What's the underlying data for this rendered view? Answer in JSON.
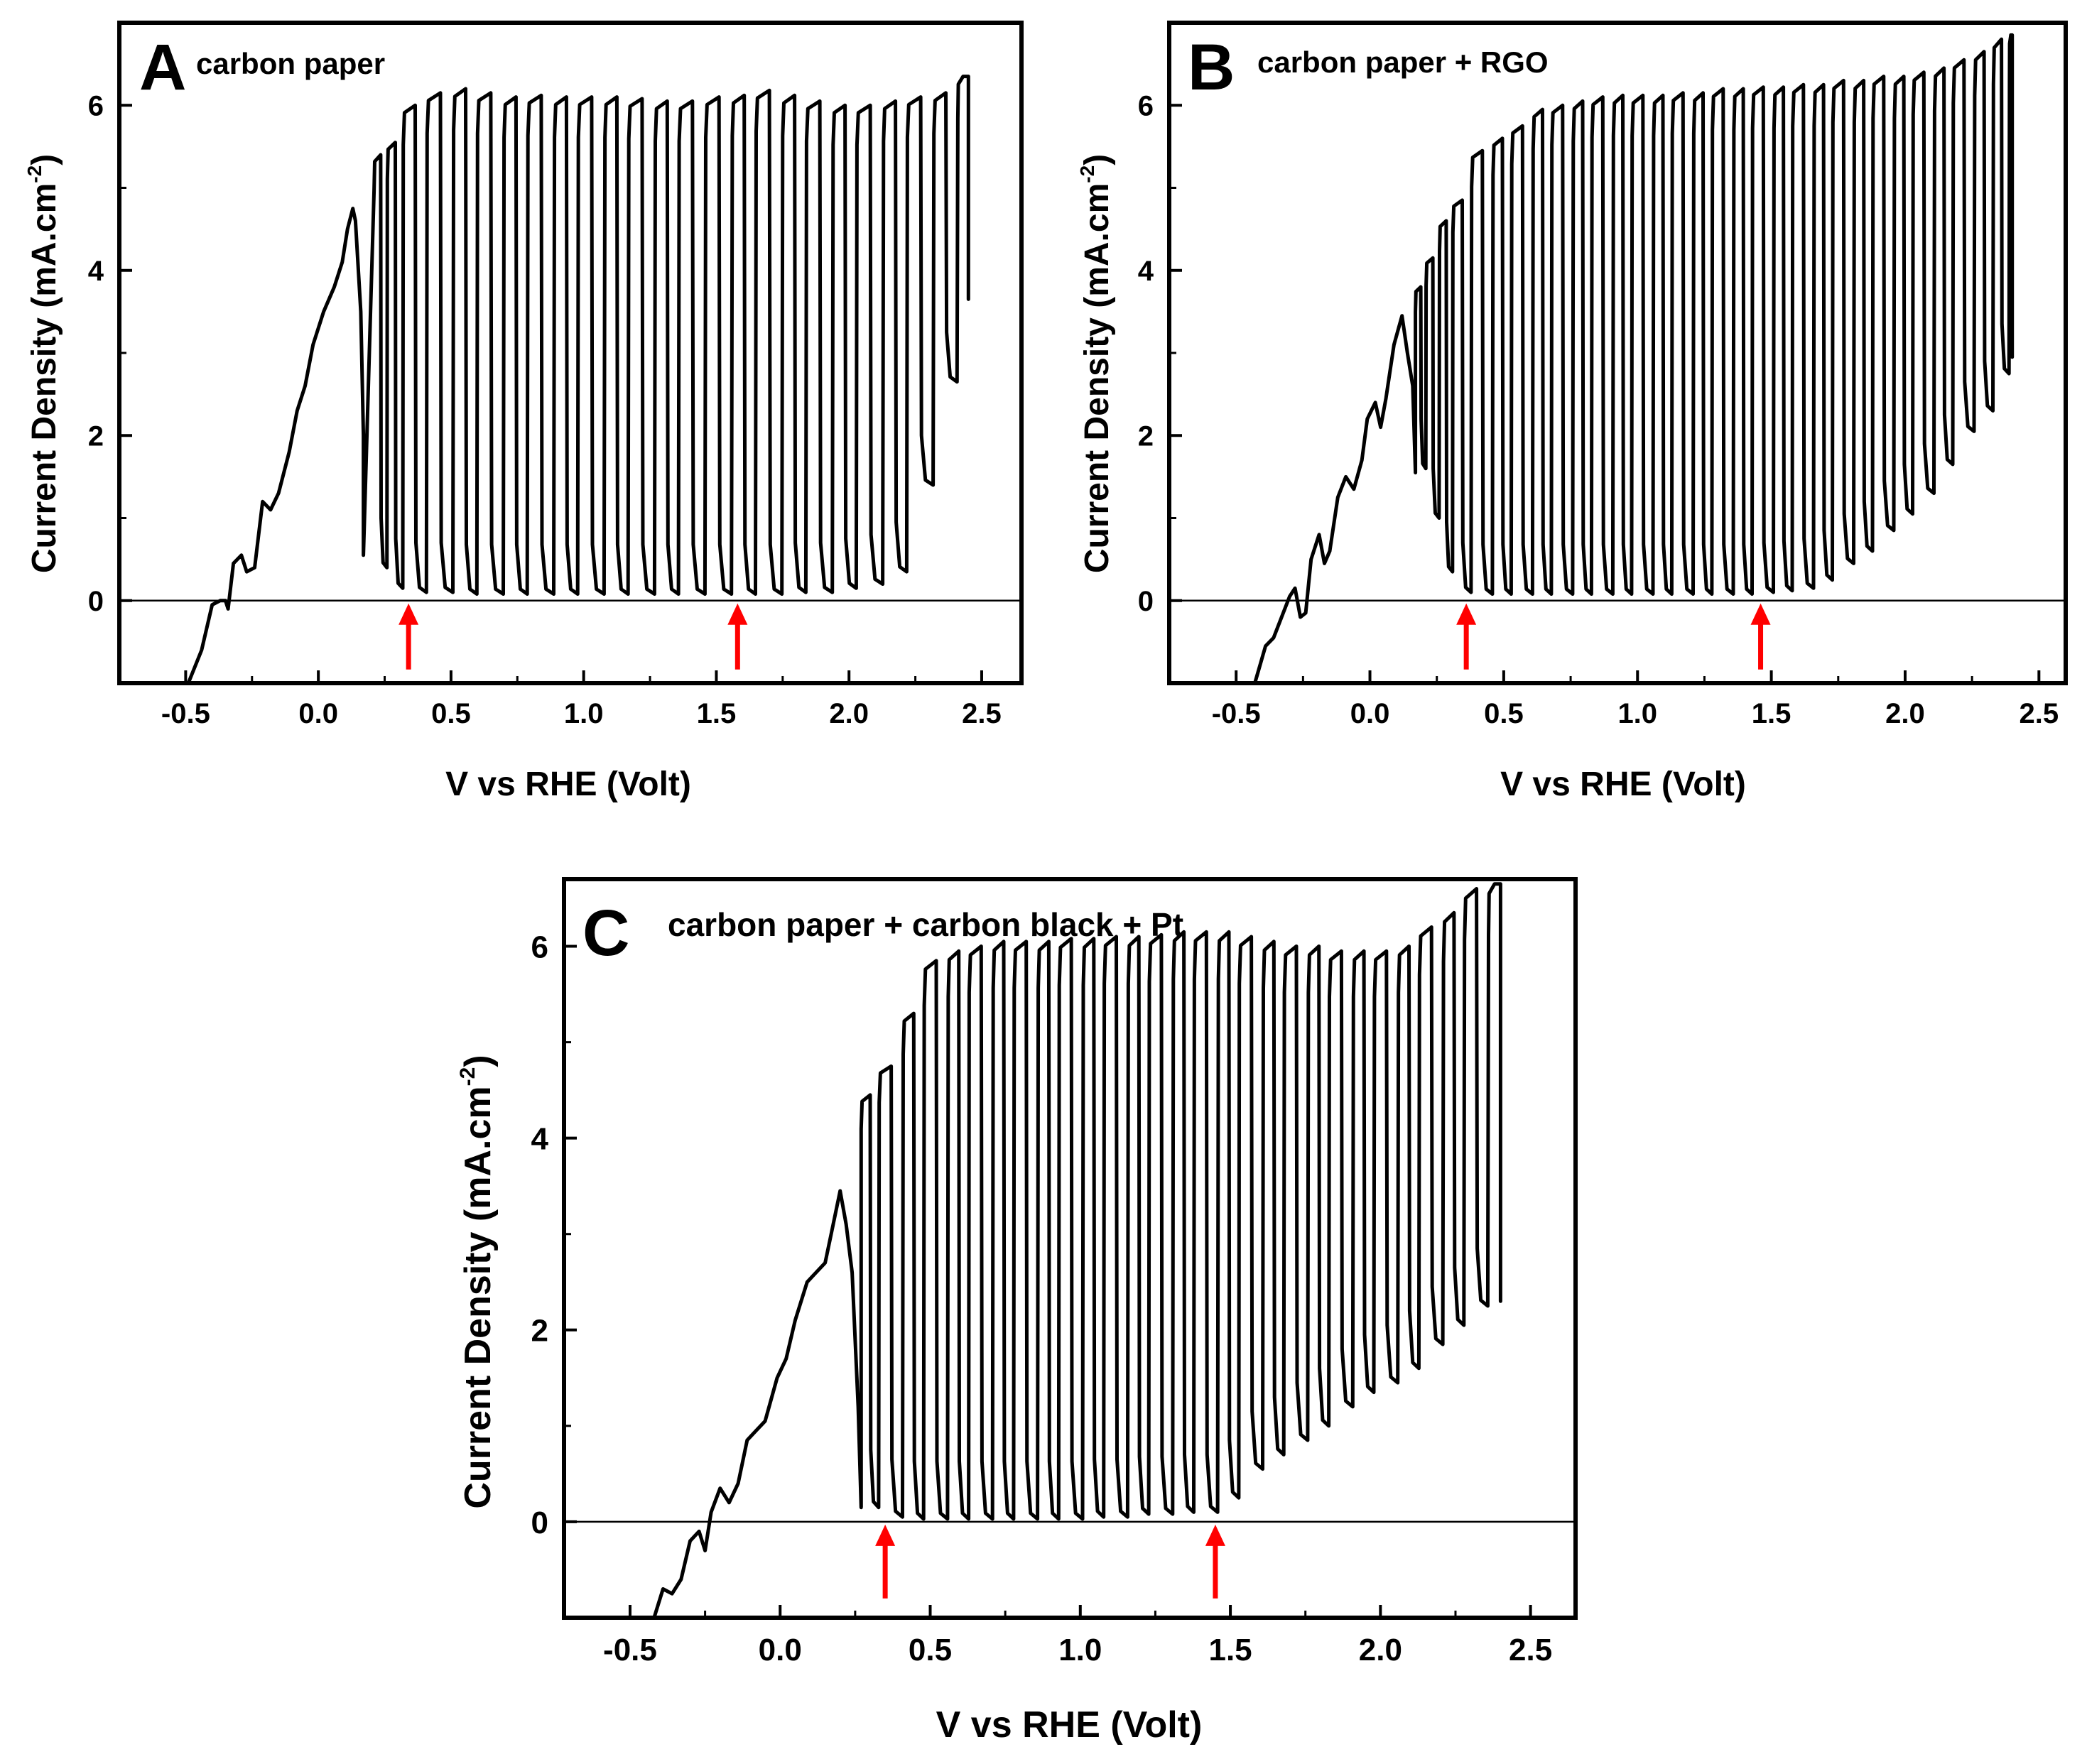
{
  "figure": {
    "panels": [
      {
        "letter": "A",
        "title": "carbon paper"
      },
      {
        "letter": "B",
        "title": "carbon paper + RGO"
      },
      {
        "letter": "C",
        "title": "carbon paper + carbon black + Pt"
      }
    ],
    "xlabel": "V vs RHE (Volt)",
    "ylabel": "Current Density (mA.cm",
    "ylabel_sup": "-2",
    "ylabel_close": ")",
    "xticks": [
      "-0.5",
      "0.0",
      "0.5",
      "1.0",
      "1.5",
      "2.0",
      "2.5"
    ],
    "yticks": [
      "0",
      "2",
      "4",
      "6"
    ]
  },
  "colors": {
    "trace": "#000000",
    "arrow": "#ff0000",
    "axis": "#000000"
  },
  "chart_data": [
    {
      "type": "line",
      "panel": "A",
      "title": "carbon paper",
      "xlabel": "V vs RHE (Volt)",
      "ylabel": "Current Density (mA.cm-2)",
      "xlim": [
        -0.75,
        2.65
      ],
      "ylim": [
        -1,
        7
      ],
      "xticks": [
        -0.5,
        0.0,
        0.5,
        1.0,
        1.5,
        2.0,
        2.5
      ],
      "yticks": [
        0,
        2,
        4,
        6
      ],
      "zero_line": true,
      "arrows_at_x": [
        0.34,
        1.58
      ],
      "ramp_points": [
        [
          -0.49,
          -1.0
        ],
        [
          -0.44,
          -0.6
        ],
        [
          -0.4,
          -0.05
        ],
        [
          -0.37,
          0.0
        ],
        [
          -0.35,
          0.0
        ],
        [
          -0.34,
          -0.1
        ],
        [
          -0.32,
          0.45
        ],
        [
          -0.29,
          0.55
        ],
        [
          -0.27,
          0.35
        ],
        [
          -0.24,
          0.4
        ],
        [
          -0.21,
          1.2
        ],
        [
          -0.18,
          1.1
        ],
        [
          -0.15,
          1.3
        ],
        [
          -0.11,
          1.8
        ],
        [
          -0.08,
          2.3
        ],
        [
          -0.05,
          2.6
        ],
        [
          -0.02,
          3.1
        ],
        [
          0.02,
          3.5
        ],
        [
          0.06,
          3.8
        ],
        [
          0.09,
          4.1
        ],
        [
          0.11,
          4.5
        ],
        [
          0.13,
          4.75
        ],
        [
          0.14,
          4.6
        ],
        [
          0.16,
          3.5
        ],
        [
          0.17,
          2.0
        ],
        [
          0.17,
          0.55
        ]
      ],
      "pulses": [
        {
          "x": 0.21,
          "on": 5.4,
          "off": 0.4
        },
        {
          "x": 0.26,
          "on": 5.55,
          "off": 0.15
        },
        {
          "x": 0.32,
          "on": 6.0,
          "off": 0.1
        },
        {
          "x": 0.41,
          "on": 6.15,
          "off": 0.1
        },
        {
          "x": 0.51,
          "on": 6.2,
          "off": 0.08
        },
        {
          "x": 0.6,
          "on": 6.15,
          "off": 0.08
        },
        {
          "x": 0.7,
          "on": 6.1,
          "off": 0.08
        },
        {
          "x": 0.79,
          "on": 6.12,
          "off": 0.08
        },
        {
          "x": 0.89,
          "on": 6.1,
          "off": 0.08
        },
        {
          "x": 0.98,
          "on": 6.1,
          "off": 0.08
        },
        {
          "x": 1.08,
          "on": 6.1,
          "off": 0.08
        },
        {
          "x": 1.17,
          "on": 6.08,
          "off": 0.08
        },
        {
          "x": 1.27,
          "on": 6.05,
          "off": 0.08
        },
        {
          "x": 1.36,
          "on": 6.05,
          "off": 0.08
        },
        {
          "x": 1.46,
          "on": 6.1,
          "off": 0.08
        },
        {
          "x": 1.56,
          "on": 6.12,
          "off": 0.08
        },
        {
          "x": 1.65,
          "on": 6.18,
          "off": 0.08
        },
        {
          "x": 1.75,
          "on": 6.12,
          "off": 0.1
        },
        {
          "x": 1.84,
          "on": 6.05,
          "off": 0.1
        },
        {
          "x": 1.94,
          "on": 6.0,
          "off": 0.15
        },
        {
          "x": 2.03,
          "on": 6.0,
          "off": 0.2
        },
        {
          "x": 2.13,
          "on": 6.05,
          "off": 0.35
        },
        {
          "x": 2.22,
          "on": 6.1,
          "off": 1.4
        },
        {
          "x": 2.32,
          "on": 6.15,
          "off": 2.65
        },
        {
          "x": 2.41,
          "on": 6.35,
          "off": null
        }
      ],
      "end": {
        "x": 2.45,
        "y": 3.65
      }
    },
    {
      "type": "line",
      "panel": "B",
      "title": "carbon paper + RGO",
      "xlabel": "V vs RHE (Volt)",
      "ylabel": "Current Density (mA.cm-2)",
      "xlim": [
        -0.75,
        2.6
      ],
      "ylim": [
        -1,
        7
      ],
      "xticks": [
        -0.5,
        0.0,
        0.5,
        1.0,
        1.5,
        2.0,
        2.5
      ],
      "yticks": [
        0,
        2,
        4,
        6
      ],
      "zero_line": true,
      "arrows_at_x": [
        0.36,
        1.46
      ],
      "ramp_points": [
        [
          -0.43,
          -1.0
        ],
        [
          -0.39,
          -0.55
        ],
        [
          -0.36,
          -0.45
        ],
        [
          -0.33,
          -0.2
        ],
        [
          -0.3,
          0.05
        ],
        [
          -0.28,
          0.15
        ],
        [
          -0.26,
          -0.2
        ],
        [
          -0.24,
          -0.15
        ],
        [
          -0.22,
          0.5
        ],
        [
          -0.19,
          0.8
        ],
        [
          -0.17,
          0.45
        ],
        [
          -0.15,
          0.6
        ],
        [
          -0.12,
          1.25
        ],
        [
          -0.09,
          1.5
        ],
        [
          -0.06,
          1.35
        ],
        [
          -0.03,
          1.7
        ],
        [
          -0.01,
          2.2
        ],
        [
          0.02,
          2.4
        ],
        [
          0.04,
          2.1
        ],
        [
          0.06,
          2.45
        ],
        [
          0.09,
          3.1
        ],
        [
          0.12,
          3.45
        ],
        [
          0.14,
          3.0
        ],
        [
          0.16,
          2.6
        ],
        [
          0.17,
          1.55
        ]
      ],
      "pulses": [
        {
          "x": 0.17,
          "on": 3.8,
          "off": 1.6
        },
        {
          "x": 0.21,
          "on": 4.15,
          "off": 1.0
        },
        {
          "x": 0.26,
          "on": 4.6,
          "off": 0.35
        },
        {
          "x": 0.31,
          "on": 4.85,
          "off": 0.1
        },
        {
          "x": 0.38,
          "on": 5.45,
          "off": 0.08
        },
        {
          "x": 0.46,
          "on": 5.6,
          "off": 0.08
        },
        {
          "x": 0.53,
          "on": 5.75,
          "off": 0.08
        },
        {
          "x": 0.61,
          "on": 5.95,
          "off": 0.08
        },
        {
          "x": 0.68,
          "on": 6.0,
          "off": 0.08
        },
        {
          "x": 0.76,
          "on": 6.05,
          "off": 0.08
        },
        {
          "x": 0.83,
          "on": 6.1,
          "off": 0.08
        },
        {
          "x": 0.91,
          "on": 6.12,
          "off": 0.08
        },
        {
          "x": 0.98,
          "on": 6.12,
          "off": 0.08
        },
        {
          "x": 1.06,
          "on": 6.12,
          "off": 0.08
        },
        {
          "x": 1.13,
          "on": 6.15,
          "off": 0.08
        },
        {
          "x": 1.21,
          "on": 6.15,
          "off": 0.08
        },
        {
          "x": 1.28,
          "on": 6.2,
          "off": 0.08
        },
        {
          "x": 1.36,
          "on": 6.2,
          "off": 0.08
        },
        {
          "x": 1.43,
          "on": 6.22,
          "off": 0.1
        },
        {
          "x": 1.51,
          "on": 6.22,
          "off": 0.12
        },
        {
          "x": 1.58,
          "on": 6.25,
          "off": 0.15
        },
        {
          "x": 1.66,
          "on": 6.25,
          "off": 0.25
        },
        {
          "x": 1.73,
          "on": 6.3,
          "off": 0.45
        },
        {
          "x": 1.81,
          "on": 6.3,
          "off": 0.6
        },
        {
          "x": 1.88,
          "on": 6.35,
          "off": 0.85
        },
        {
          "x": 1.96,
          "on": 6.35,
          "off": 1.05
        },
        {
          "x": 2.03,
          "on": 6.4,
          "off": 1.3
        },
        {
          "x": 2.11,
          "on": 6.45,
          "off": 1.65
        },
        {
          "x": 2.18,
          "on": 6.55,
          "off": 2.05
        },
        {
          "x": 2.26,
          "on": 6.65,
          "off": 2.3
        },
        {
          "x": 2.33,
          "on": 6.8,
          "off": 2.75
        },
        {
          "x": 2.39,
          "on": 6.85,
          "off": null
        }
      ],
      "end": {
        "x": 2.4,
        "y": 2.95
      }
    },
    {
      "type": "line",
      "panel": "C",
      "title": "carbon paper + carbon black + Pt",
      "xlabel": "V vs RHE (Volt)",
      "ylabel": "Current Density (mA.cm-2)",
      "xlim": [
        -0.72,
        2.65
      ],
      "ylim": [
        -1,
        6.7
      ],
      "xticks": [
        -0.5,
        0.0,
        0.5,
        1.0,
        1.5,
        2.0,
        2.5
      ],
      "yticks": [
        0,
        2,
        4,
        6
      ],
      "zero_line": true,
      "arrows_at_x": [
        0.35,
        1.45
      ],
      "ramp_points": [
        [
          -0.42,
          -1.0
        ],
        [
          -0.39,
          -0.7
        ],
        [
          -0.36,
          -0.75
        ],
        [
          -0.33,
          -0.6
        ],
        [
          -0.3,
          -0.2
        ],
        [
          -0.27,
          -0.1
        ],
        [
          -0.25,
          -0.3
        ],
        [
          -0.23,
          0.1
        ],
        [
          -0.2,
          0.35
        ],
        [
          -0.17,
          0.2
        ],
        [
          -0.14,
          0.4
        ],
        [
          -0.11,
          0.85
        ],
        [
          -0.08,
          0.95
        ],
        [
          -0.05,
          1.05
        ],
        [
          -0.01,
          1.5
        ],
        [
          0.02,
          1.7
        ],
        [
          0.05,
          2.1
        ],
        [
          0.09,
          2.5
        ],
        [
          0.12,
          2.6
        ],
        [
          0.15,
          2.7
        ],
        [
          0.17,
          3.0
        ],
        [
          0.2,
          3.45
        ],
        [
          0.22,
          3.1
        ],
        [
          0.24,
          2.6
        ],
        [
          0.26,
          1.2
        ],
        [
          0.27,
          0.15
        ]
      ],
      "pulses": [
        {
          "x": 0.27,
          "on": 4.45,
          "off": 0.15
        },
        {
          "x": 0.33,
          "on": 4.75,
          "off": 0.05
        },
        {
          "x": 0.41,
          "on": 5.3,
          "off": 0.03
        },
        {
          "x": 0.48,
          "on": 5.85,
          "off": 0.03
        },
        {
          "x": 0.56,
          "on": 5.95,
          "off": 0.03
        },
        {
          "x": 0.63,
          "on": 6.0,
          "off": 0.03
        },
        {
          "x": 0.71,
          "on": 6.05,
          "off": 0.03
        },
        {
          "x": 0.78,
          "on": 6.05,
          "off": 0.03
        },
        {
          "x": 0.86,
          "on": 6.05,
          "off": 0.03
        },
        {
          "x": 0.93,
          "on": 6.08,
          "off": 0.03
        },
        {
          "x": 1.01,
          "on": 6.08,
          "off": 0.05
        },
        {
          "x": 1.08,
          "on": 6.1,
          "off": 0.05
        },
        {
          "x": 1.16,
          "on": 6.1,
          "off": 0.08
        },
        {
          "x": 1.23,
          "on": 6.12,
          "off": 0.08
        },
        {
          "x": 1.31,
          "on": 6.15,
          "off": 0.1
        },
        {
          "x": 1.38,
          "on": 6.15,
          "off": 0.1
        },
        {
          "x": 1.46,
          "on": 6.15,
          "off": 0.25
        },
        {
          "x": 1.53,
          "on": 6.1,
          "off": 0.55
        },
        {
          "x": 1.61,
          "on": 6.05,
          "off": 0.7
        },
        {
          "x": 1.68,
          "on": 6.0,
          "off": 0.85
        },
        {
          "x": 1.76,
          "on": 6.0,
          "off": 1.0
        },
        {
          "x": 1.83,
          "on": 5.95,
          "off": 1.2
        },
        {
          "x": 1.91,
          "on": 5.95,
          "off": 1.35
        },
        {
          "x": 1.98,
          "on": 5.95,
          "off": 1.45
        },
        {
          "x": 2.06,
          "on": 6.0,
          "off": 1.6
        },
        {
          "x": 2.13,
          "on": 6.2,
          "off": 1.85
        },
        {
          "x": 2.21,
          "on": 6.35,
          "off": 2.05
        },
        {
          "x": 2.28,
          "on": 6.6,
          "off": 2.25
        },
        {
          "x": 2.36,
          "on": 6.65,
          "off": null
        }
      ],
      "end": {
        "x": 2.4,
        "y": 2.3
      }
    }
  ]
}
